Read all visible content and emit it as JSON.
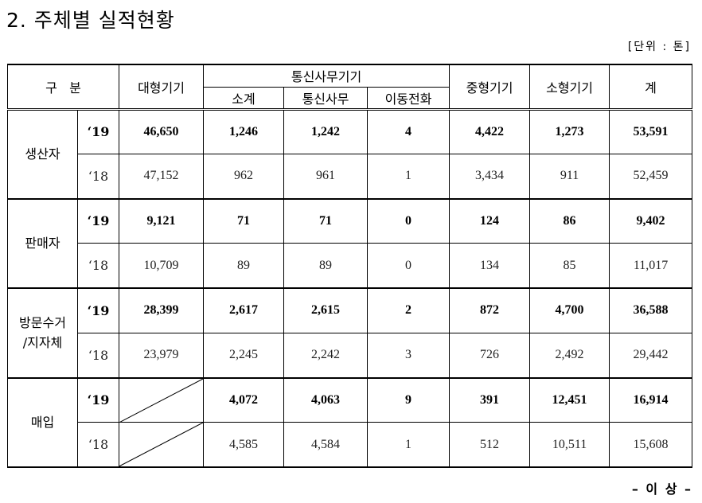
{
  "title": "2. 주체별 실적현황",
  "unit": "[단위 : 톤]",
  "headers": {
    "category": "구   분",
    "large": "대형기기",
    "telecom_group": "통신사무기기",
    "subtotal": "소계",
    "telecom_office": "통신사무",
    "mobile": "이동전화",
    "medium": "중형기기",
    "small": "소형기기",
    "total": "계"
  },
  "groups": [
    {
      "name_lines": [
        "생산자"
      ],
      "rows": [
        {
          "year": "‘19",
          "large": "46,650",
          "subtotal": "1,246",
          "telecom_office": "1,242",
          "mobile": "4",
          "medium": "4,422",
          "small": "1,273",
          "total": "53,591"
        },
        {
          "year": "‘18",
          "large": "47,152",
          "subtotal": "962",
          "telecom_office": "961",
          "mobile": "1",
          "medium": "3,434",
          "small": "911",
          "total": "52,459"
        }
      ]
    },
    {
      "name_lines": [
        "판매자"
      ],
      "rows": [
        {
          "year": "‘19",
          "large": "9,121",
          "subtotal": "71",
          "telecom_office": "71",
          "mobile": "0",
          "medium": "124",
          "small": "86",
          "total": "9,402"
        },
        {
          "year": "‘18",
          "large": "10,709",
          "subtotal": "89",
          "telecom_office": "89",
          "mobile": "0",
          "medium": "134",
          "small": "85",
          "total": "11,017"
        }
      ]
    },
    {
      "name_lines": [
        "방문수거",
        "/지자체"
      ],
      "rows": [
        {
          "year": "‘19",
          "large": "28,399",
          "subtotal": "2,617",
          "telecom_office": "2,615",
          "mobile": "2",
          "medium": "872",
          "small": "4,700",
          "total": "36,588"
        },
        {
          "year": "‘18",
          "large": "23,979",
          "subtotal": "2,245",
          "telecom_office": "2,242",
          "mobile": "3",
          "medium": "726",
          "small": "2,492",
          "total": "29,442"
        }
      ]
    },
    {
      "name_lines": [
        "매입"
      ],
      "rows": [
        {
          "year": "‘19",
          "large": "",
          "subtotal": "4,072",
          "telecom_office": "4,063",
          "mobile": "9",
          "medium": "391",
          "small": "12,451",
          "total": "16,914"
        },
        {
          "year": "‘18",
          "large": "",
          "subtotal": "4,585",
          "telecom_office": "4,584",
          "mobile": "1",
          "medium": "512",
          "small": "10,511",
          "total": "15,608"
        }
      ]
    }
  ],
  "footer": "– 이 상 –"
}
